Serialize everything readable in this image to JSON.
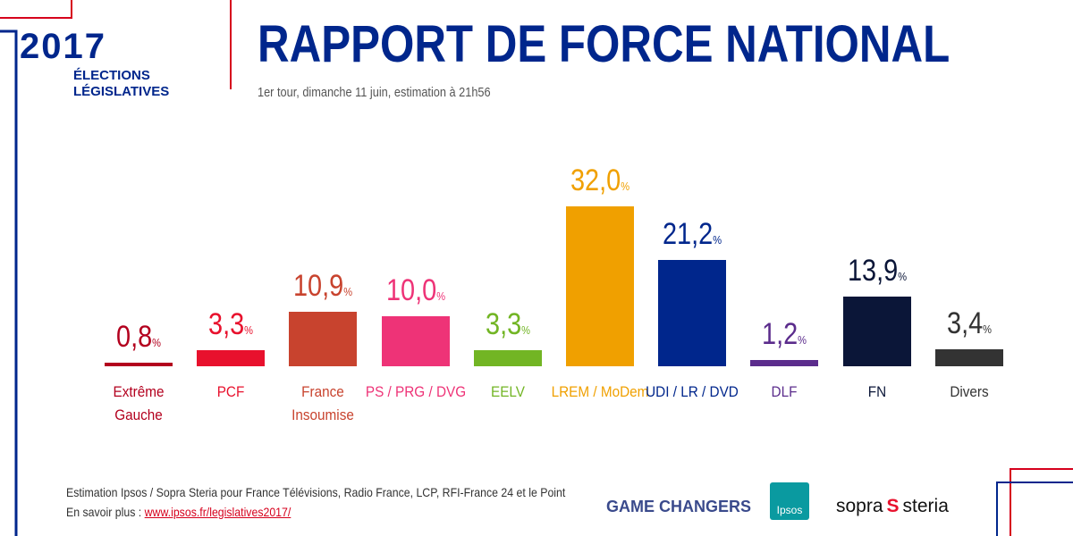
{
  "logo": {
    "year": "2017",
    "line1": "ÉLECTIONS",
    "line2": "LÉGISLATIVES"
  },
  "chart_data": {
    "type": "bar",
    "title": "RAPPORT DE FORCE NATIONAL",
    "subtitle": "1er tour, dimanche 11 juin, estimation à 21h56",
    "categories": [
      "Extrême Gauche",
      "PCF",
      "France Insoumise",
      "PS / PRG / DVG",
      "EELV",
      "LREM / MoDem",
      "UDI / LR / DVD",
      "DLF",
      "FN",
      "Divers"
    ],
    "values": [
      0.8,
      3.3,
      10.9,
      10.0,
      3.3,
      32.0,
      21.2,
      1.2,
      13.9,
      3.4
    ],
    "value_labels": [
      "0,8%",
      "3,3%",
      "10,9%",
      "10,0%",
      "3,3%",
      "32,0%",
      "21,2%",
      "1,2%",
      "13,9%",
      "3,4%"
    ],
    "colors": [
      "#b3001e",
      "#e8112d",
      "#c8432e",
      "#ee3377",
      "#72b524",
      "#f0a000",
      "#00268c",
      "#5b2c8c",
      "#0b1638",
      "#333333"
    ]
  },
  "footer": {
    "source": "Estimation Ipsos / Sopra Steria pour France Télévisions, Radio France, LCP, RFI-France 24 et le Point",
    "more": "En savoir plus :",
    "link": "www.ipsos.fr/legislatives2017/"
  },
  "sponsors": {
    "game_changers": "GAME CHANGERS",
    "ipsos": "Ipsos",
    "sopra": "sopra",
    "steria": "steria"
  }
}
